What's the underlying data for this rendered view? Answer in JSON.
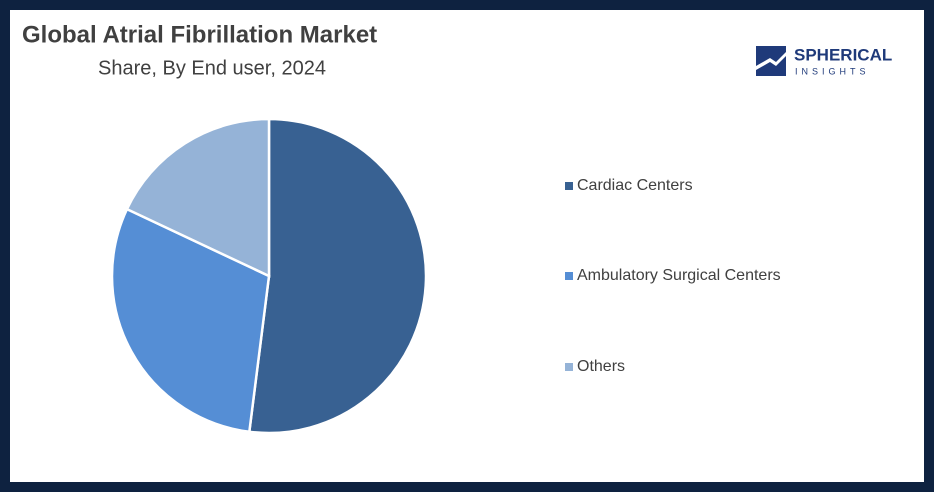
{
  "chart_data": {
    "type": "pie",
    "title": "Global Atrial Fibrillation Market",
    "subtitle": "Share, By End user, 2024",
    "categories": [
      "Cardiac Centers",
      "Ambulatory Surgical Centers",
      "Others"
    ],
    "values": [
      52,
      30,
      18
    ],
    "colors": [
      "#386192",
      "#558ed5",
      "#95b3d7"
    ],
    "legend": "right"
  },
  "logo": {
    "line1": "SPHERICAL",
    "line2": "INSIGHTS"
  }
}
